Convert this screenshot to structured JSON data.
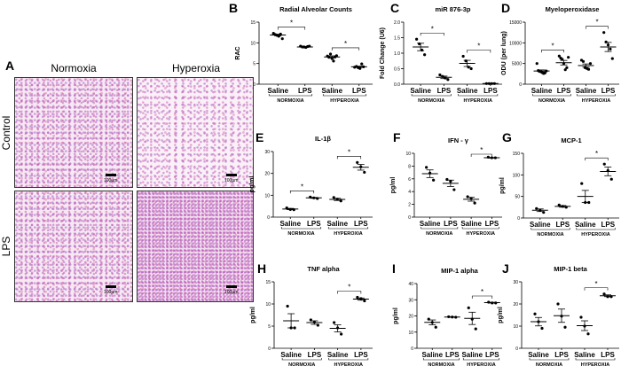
{
  "panel_a": {
    "letter": "A",
    "columns": [
      "Normoxia",
      "Hyperoxia"
    ],
    "rows": [
      "Control",
      "LPS"
    ],
    "scale_bar_label": "100µm"
  },
  "categories": [
    "Saline",
    "LPS",
    "Saline",
    "LPS"
  ],
  "groups": [
    "NORMOXIA",
    "HYPEROXIA"
  ],
  "colors": {
    "points": "#000000",
    "axis": "#000000"
  },
  "chart_data": [
    {
      "letter": "B",
      "type": "scatter",
      "title": "Radial Alveolar Counts",
      "ylabel": "RAC",
      "ylim": [
        0,
        15
      ],
      "yticks": [
        "0",
        "5",
        "10",
        "15"
      ],
      "values": [
        [
          12.3,
          12.0,
          11.8,
          11.6,
          12.1,
          11.0
        ],
        [
          9.2,
          9.0,
          9.0,
          8.9,
          9.1,
          9.2
        ],
        [
          6.8,
          6.5,
          7.3,
          6.2,
          5.6,
          6.6,
          6.9
        ],
        [
          4.1,
          4.3,
          4.0,
          3.8,
          4.9,
          4.2
        ]
      ],
      "means": [
        11.9,
        9.0,
        6.6,
        4.2
      ],
      "sem": [
        0.2,
        0.05,
        0.25,
        0.15
      ],
      "significance": [
        [
          0,
          1
        ],
        [
          2,
          3
        ]
      ],
      "sig_label": "*"
    },
    {
      "letter": "C",
      "type": "scatter",
      "title": "miR 876-3p",
      "ylabel": "Fold Change (U6)",
      "ylim": [
        0,
        2.0
      ],
      "yticks": [
        "0.0",
        "0.5",
        "1.0",
        "1.5",
        "2.0"
      ],
      "values": [
        [
          1.45,
          1.3,
          1.1,
          0.95
        ],
        [
          0.3,
          0.25,
          0.2,
          0.15
        ],
        [
          0.9,
          0.75,
          0.55,
          0.5
        ],
        [
          0.02,
          0.02,
          0.02,
          0.02
        ]
      ],
      "means": [
        1.2,
        0.22,
        0.67,
        0.02
      ],
      "sem": [
        0.12,
        0.04,
        0.1,
        0.0
      ],
      "significance": [
        [
          0,
          1
        ],
        [
          2,
          3
        ]
      ],
      "sig_label": "*"
    },
    {
      "letter": "D",
      "type": "scatter",
      "title": "Myeloperoxidase",
      "ylabel": "ODU (per lung)",
      "ylim": [
        0,
        15000
      ],
      "yticks": [
        "0",
        "5000",
        "10000",
        "15000"
      ],
      "values": [
        [
          5000,
          3300,
          3100,
          3000,
          2800,
          2600,
          2700,
          3200
        ],
        [
          6800,
          6300,
          6000,
          5000,
          3500,
          4000,
          6500
        ],
        [
          5800,
          5500,
          4000,
          3800,
          3600,
          5000
        ],
        [
          12500,
          10200,
          9500,
          8500,
          6200
        ]
      ],
      "means": [
        3200,
        5200,
        4500,
        9000
      ],
      "sem": [
        250,
        550,
        400,
        1100
      ],
      "significance": [
        [
          0,
          1
        ],
        [
          2,
          3
        ]
      ],
      "sig_label": "*"
    },
    {
      "letter": "E",
      "type": "scatter",
      "title": "IL-1β",
      "ylabel": "pg/ml",
      "ylim": [
        0,
        30
      ],
      "yticks": [
        "0",
        "10",
        "20",
        "30"
      ],
      "values": [
        [
          4.2,
          3.5,
          3.4
        ],
        [
          9.2,
          8.8,
          8.5
        ],
        [
          9.0,
          8.2,
          7.4
        ],
        [
          25,
          23,
          20.5
        ]
      ],
      "means": [
        3.7,
        8.8,
        8.1,
        22.8
      ],
      "sem": [
        0.3,
        0.2,
        0.5,
        1.3
      ],
      "significance": [
        [
          0,
          1
        ],
        [
          2,
          3
        ]
      ],
      "sig_label": "*"
    },
    {
      "letter": "F",
      "type": "scatter",
      "title": "IFN - γ",
      "ylabel": "pg/ml",
      "ylim": [
        0,
        10
      ],
      "yticks": [
        "0",
        "2",
        "4",
        "6",
        "8",
        "10"
      ],
      "values": [
        [
          7.8,
          6.9,
          5.8
        ],
        [
          5.9,
          5.6,
          4.3
        ],
        [
          3.2,
          2.9,
          2.2
        ],
        [
          9.4,
          9.3,
          9.3
        ]
      ],
      "means": [
        6.8,
        5.3,
        2.8,
        9.3
      ],
      "sem": [
        0.6,
        0.5,
        0.3,
        0.05
      ],
      "significance": [
        [
          2,
          3
        ]
      ],
      "sig_label": "*"
    },
    {
      "letter": "G",
      "type": "scatter",
      "title": "MCP-1",
      "ylabel": "pg/ml",
      "ylim": [
        0,
        150
      ],
      "yticks": [
        "0",
        "50",
        "100",
        "150"
      ],
      "values": [
        [
          22,
          18,
          13
        ],
        [
          30,
          27,
          25
        ],
        [
          80,
          36,
          36
        ],
        [
          125,
          110,
          90
        ]
      ],
      "means": [
        18,
        27,
        50,
        108
      ],
      "sem": [
        3,
        2,
        14,
        10
      ],
      "significance": [
        [
          2,
          3
        ]
      ],
      "sig_label": "*"
    },
    {
      "letter": "H",
      "type": "scatter",
      "title": "TNF alpha",
      "ylabel": "pg/ml",
      "ylim": [
        0,
        15
      ],
      "yticks": [
        "0",
        "5",
        "10",
        "15"
      ],
      "values": [
        [
          9.5,
          4.6,
          4.6
        ],
        [
          6.4,
          5.9,
          5.2
        ],
        [
          5.8,
          4.6,
          3.2
        ],
        [
          11.5,
          11.2,
          10.7
        ]
      ],
      "means": [
        6.2,
        5.8,
        4.5,
        11.1
      ],
      "sem": [
        1.6,
        0.4,
        0.8,
        0.25
      ],
      "significance": [
        [
          2,
          3
        ]
      ],
      "sig_label": "*"
    },
    {
      "letter": "I",
      "type": "scatter",
      "title": "MIP-1 alpha",
      "ylabel": "pg/ml",
      "ylim": [
        0,
        40
      ],
      "yticks": [
        "0",
        "10",
        "20",
        "30",
        "40"
      ],
      "values": [
        [
          18,
          16,
          13
        ],
        [
          19.5,
          19.3,
          19.2
        ],
        [
          25,
          18,
          12
        ],
        [
          28.5,
          28,
          28
        ]
      ],
      "means": [
        16,
        19.3,
        18.5,
        28.2
      ],
      "sem": [
        1.5,
        0.1,
        3.8,
        0.2
      ],
      "significance": [
        [
          2,
          3
        ]
      ],
      "sig_label": "*"
    },
    {
      "letter": "J",
      "type": "scatter",
      "title": "MIP-1 beta",
      "ylabel": "pg/ml",
      "ylim": [
        0,
        30
      ],
      "yticks": [
        "0",
        "10",
        "20",
        "30"
      ],
      "values": [
        [
          15.5,
          12,
          9
        ],
        [
          20,
          14.5,
          9.5
        ],
        [
          14,
          10,
          6.5
        ],
        [
          24.5,
          23.3,
          23.3
        ]
      ],
      "means": [
        12,
        14.7,
        10.2,
        23.7
      ],
      "sem": [
        1.9,
        3.0,
        2.2,
        0.4
      ],
      "significance": [
        [
          2,
          3
        ]
      ],
      "sig_label": "*"
    }
  ]
}
